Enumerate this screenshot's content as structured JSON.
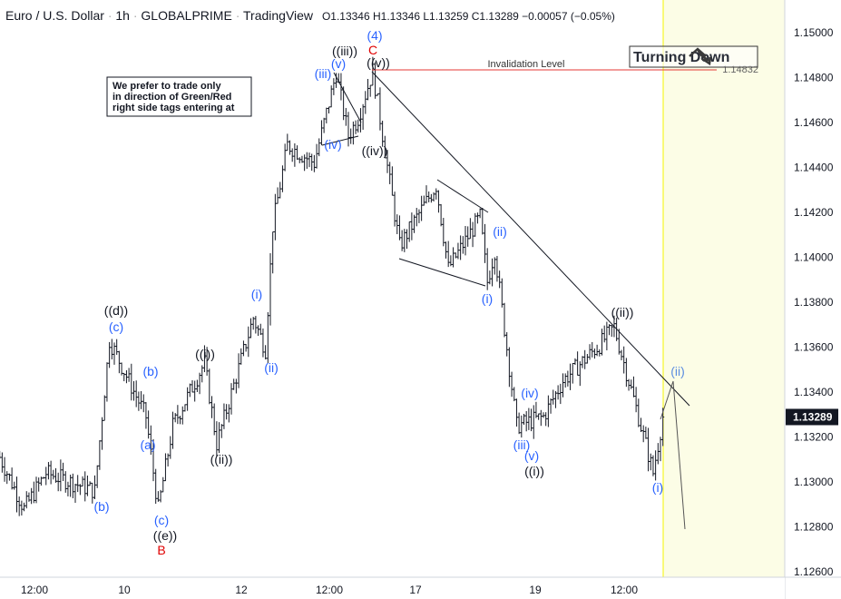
{
  "header": {
    "symbol": "Euro / U.S. Dollar",
    "interval": "1h",
    "broker": "GLOBALPRIME",
    "platform": "TradingView",
    "ohlc": "O1.13346 H1.13346 L1.13259 C1.13289 −0.00057 (−0.05%)"
  },
  "note": [
    "We prefer to trade only",
    "in direction of Green/Red",
    "right side tags entering at"
  ],
  "badge": {
    "text": "Turning Down",
    "icon": "arrow-turning-down-icon"
  },
  "invalidation": {
    "label": "Invalidation Level",
    "price": 1.14832,
    "price_label": "1.14832",
    "color": "#e53935"
  },
  "current_price": {
    "value": 1.13289,
    "label": "1.13289"
  },
  "colors": {
    "wave_blue": "#2962ff",
    "wave_black": "#131722",
    "wave_red": "#e00000",
    "future_zone": "#fcfde6",
    "future_line": "#f5f500",
    "candle": "#131722"
  },
  "chart_data": {
    "type": "candlestick",
    "ylim": [
      1.126,
      1.151
    ],
    "y_ticks": [
      "1.15000",
      "1.14800",
      "1.14600",
      "1.14400",
      "1.14200",
      "1.14000",
      "1.13800",
      "1.13600",
      "1.13400",
      "1.13200",
      "1.13000",
      "1.12800",
      "1.12600"
    ],
    "x_ticks": [
      "12:00",
      "10",
      "12",
      "12:00",
      "17",
      "19",
      "12:00"
    ],
    "grid": false,
    "price_path": [
      {
        "t": "7 21:00",
        "p": 1.1311
      },
      {
        "t": "8 07:00",
        "p": 1.1288
      },
      {
        "t": "8 16:00",
        "p": 1.1304
      },
      {
        "t": "9 12:00",
        "p": 1.1296
      },
      {
        "t": "9 18:00",
        "p": 1.1363
      },
      {
        "t": "10 09:00",
        "p": 1.1329
      },
      {
        "t": "10 14:00",
        "p": 1.1288
      },
      {
        "t": "10 20:00",
        "p": 1.1325
      },
      {
        "t": "11 09:00",
        "p": 1.1353
      },
      {
        "t": "11 14:00",
        "p": 1.1317
      },
      {
        "t": "12 05:00",
        "p": 1.1373
      },
      {
        "t": "12 10:00",
        "p": 1.1359
      },
      {
        "t": "12 13:00",
        "p": 1.1414
      },
      {
        "t": "12 19:00",
        "p": 1.145
      },
      {
        "t": "13 06:00",
        "p": 1.1442
      },
      {
        "t": "13 15:00",
        "p": 1.1482
      },
      {
        "t": "13 20:00",
        "p": 1.1454
      },
      {
        "t": "14 00:00",
        "p": 1.1462
      },
      {
        "t": "14 06:00",
        "p": 1.1483
      },
      {
        "t": "14 17:00",
        "p": 1.1405
      },
      {
        "t": "17 08:00",
        "p": 1.1432
      },
      {
        "t": "17 13:00",
        "p": 1.1395
      },
      {
        "t": "18 02:00",
        "p": 1.1418
      },
      {
        "t": "18 05:00",
        "p": 1.1389
      },
      {
        "t": "18 08:00",
        "p": 1.1403
      },
      {
        "t": "18 17:00",
        "p": 1.1325
      },
      {
        "t": "19 04:00",
        "p": 1.1329
      },
      {
        "t": "19 12:00",
        "p": 1.1345
      },
      {
        "t": "20 03:00",
        "p": 1.1361
      },
      {
        "t": "20 09:00",
        "p": 1.1369
      },
      {
        "t": "20 18:00",
        "p": 1.1333
      },
      {
        "t": "21 01:00",
        "p": 1.1304
      },
      {
        "t": "21 05:00",
        "p": 1.13289
      }
    ],
    "wave_labels": [
      {
        "text": "((d))",
        "color": "black"
      },
      {
        "text": "(c)",
        "color": "blue"
      },
      {
        "text": "(b)",
        "color": "blue"
      },
      {
        "text": "(a)",
        "color": "blue"
      },
      {
        "text": "(c)",
        "color": "blue"
      },
      {
        "text": "((e))",
        "color": "black"
      },
      {
        "text": "B",
        "color": "red"
      },
      {
        "text": "(b)",
        "color": "blue"
      },
      {
        "text": "((i))",
        "color": "black"
      },
      {
        "text": "((ii))",
        "color": "black"
      },
      {
        "text": "(i)",
        "color": "blue"
      },
      {
        "text": "(ii)",
        "color": "blue"
      },
      {
        "text": "((iii))",
        "color": "black"
      },
      {
        "text": "(v)",
        "color": "blue"
      },
      {
        "text": "(iii)",
        "color": "blue"
      },
      {
        "text": "(iv)",
        "color": "blue"
      },
      {
        "text": "((iv))",
        "color": "black"
      },
      {
        "text": "(4)",
        "color": "blue"
      },
      {
        "text": "C",
        "color": "red"
      },
      {
        "text": "((v))",
        "color": "black"
      },
      {
        "text": "(ii)",
        "color": "blue"
      },
      {
        "text": "(i)",
        "color": "blue"
      },
      {
        "text": "(iv)",
        "color": "blue"
      },
      {
        "text": "(iii)",
        "color": "blue"
      },
      {
        "text": "(v)",
        "color": "blue"
      },
      {
        "text": "((i))",
        "color": "black"
      },
      {
        "text": "((ii))",
        "color": "black"
      },
      {
        "text": "(ii)",
        "color": "lightblue"
      },
      {
        "text": "(i)",
        "color": "blue"
      }
    ]
  }
}
